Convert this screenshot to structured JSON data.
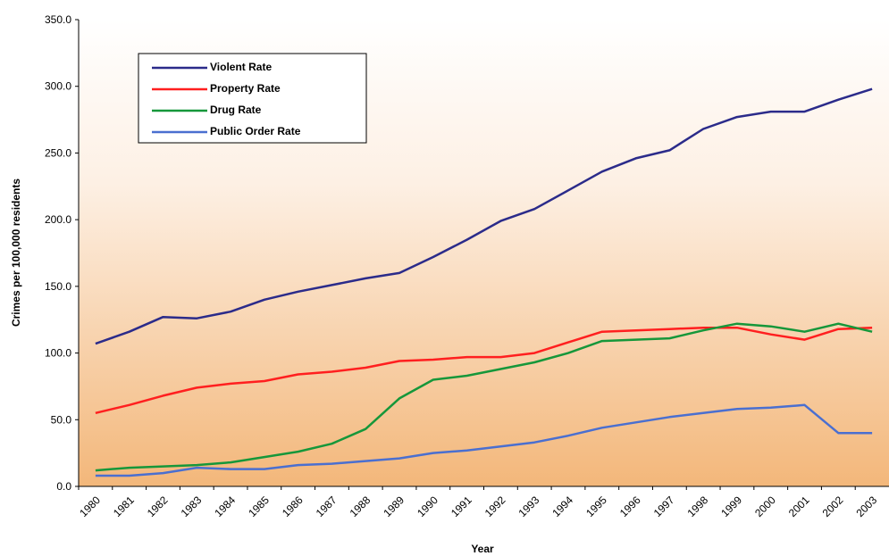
{
  "chart_data": {
    "type": "line",
    "x_label": "Year",
    "y_label": "Crimes per 100,000 residents",
    "categories": [
      "1980",
      "1981",
      "1982",
      "1983",
      "1984",
      "1985",
      "1986",
      "1987",
      "1988",
      "1989",
      "1990",
      "1991",
      "1992",
      "1993",
      "1994",
      "1995",
      "1996",
      "1997",
      "1998",
      "1999",
      "2000",
      "2001",
      "2002",
      "2003"
    ],
    "series": [
      {
        "name": "Violent Rate",
        "color": "#2b2b8a",
        "values": [
          107,
          116,
          127,
          126,
          131,
          140,
          146,
          151,
          156,
          160,
          172,
          185,
          199,
          208,
          222,
          236,
          246,
          252,
          268,
          277,
          281,
          281,
          290,
          298
        ]
      },
      {
        "name": "Property Rate",
        "color": "#ff1f1f",
        "values": [
          55,
          61,
          68,
          74,
          77,
          79,
          84,
          86,
          89,
          94,
          95,
          97,
          97,
          100,
          108,
          116,
          117,
          118,
          119,
          119,
          114,
          110,
          118,
          119
        ]
      },
      {
        "name": "Drug Rate",
        "color": "#16973a",
        "values": [
          12,
          14,
          15,
          16,
          18,
          22,
          26,
          32,
          43,
          66,
          80,
          83,
          88,
          93,
          100,
          109,
          110,
          111,
          117,
          122,
          120,
          116,
          122,
          116
        ]
      },
      {
        "name": "Public Order Rate",
        "color": "#4a6fd0",
        "values": [
          8,
          8,
          10,
          14,
          13,
          13,
          16,
          17,
          19,
          21,
          25,
          27,
          30,
          33,
          38,
          44,
          48,
          52,
          55,
          58,
          59,
          61,
          40,
          40
        ]
      }
    ],
    "ylim": [
      0,
      350
    ],
    "yticks": [
      {
        "value": 0,
        "label": "0.0"
      },
      {
        "value": 50,
        "label": "50.0"
      },
      {
        "value": 100,
        "label": "100.0"
      },
      {
        "value": 150,
        "label": "150.0"
      },
      {
        "value": 200,
        "label": "200.0"
      },
      {
        "value": 250,
        "label": "250.0"
      },
      {
        "value": 300,
        "label": "300.0"
      },
      {
        "value": 350,
        "label": "350.0"
      }
    ],
    "legend": "upper left"
  }
}
